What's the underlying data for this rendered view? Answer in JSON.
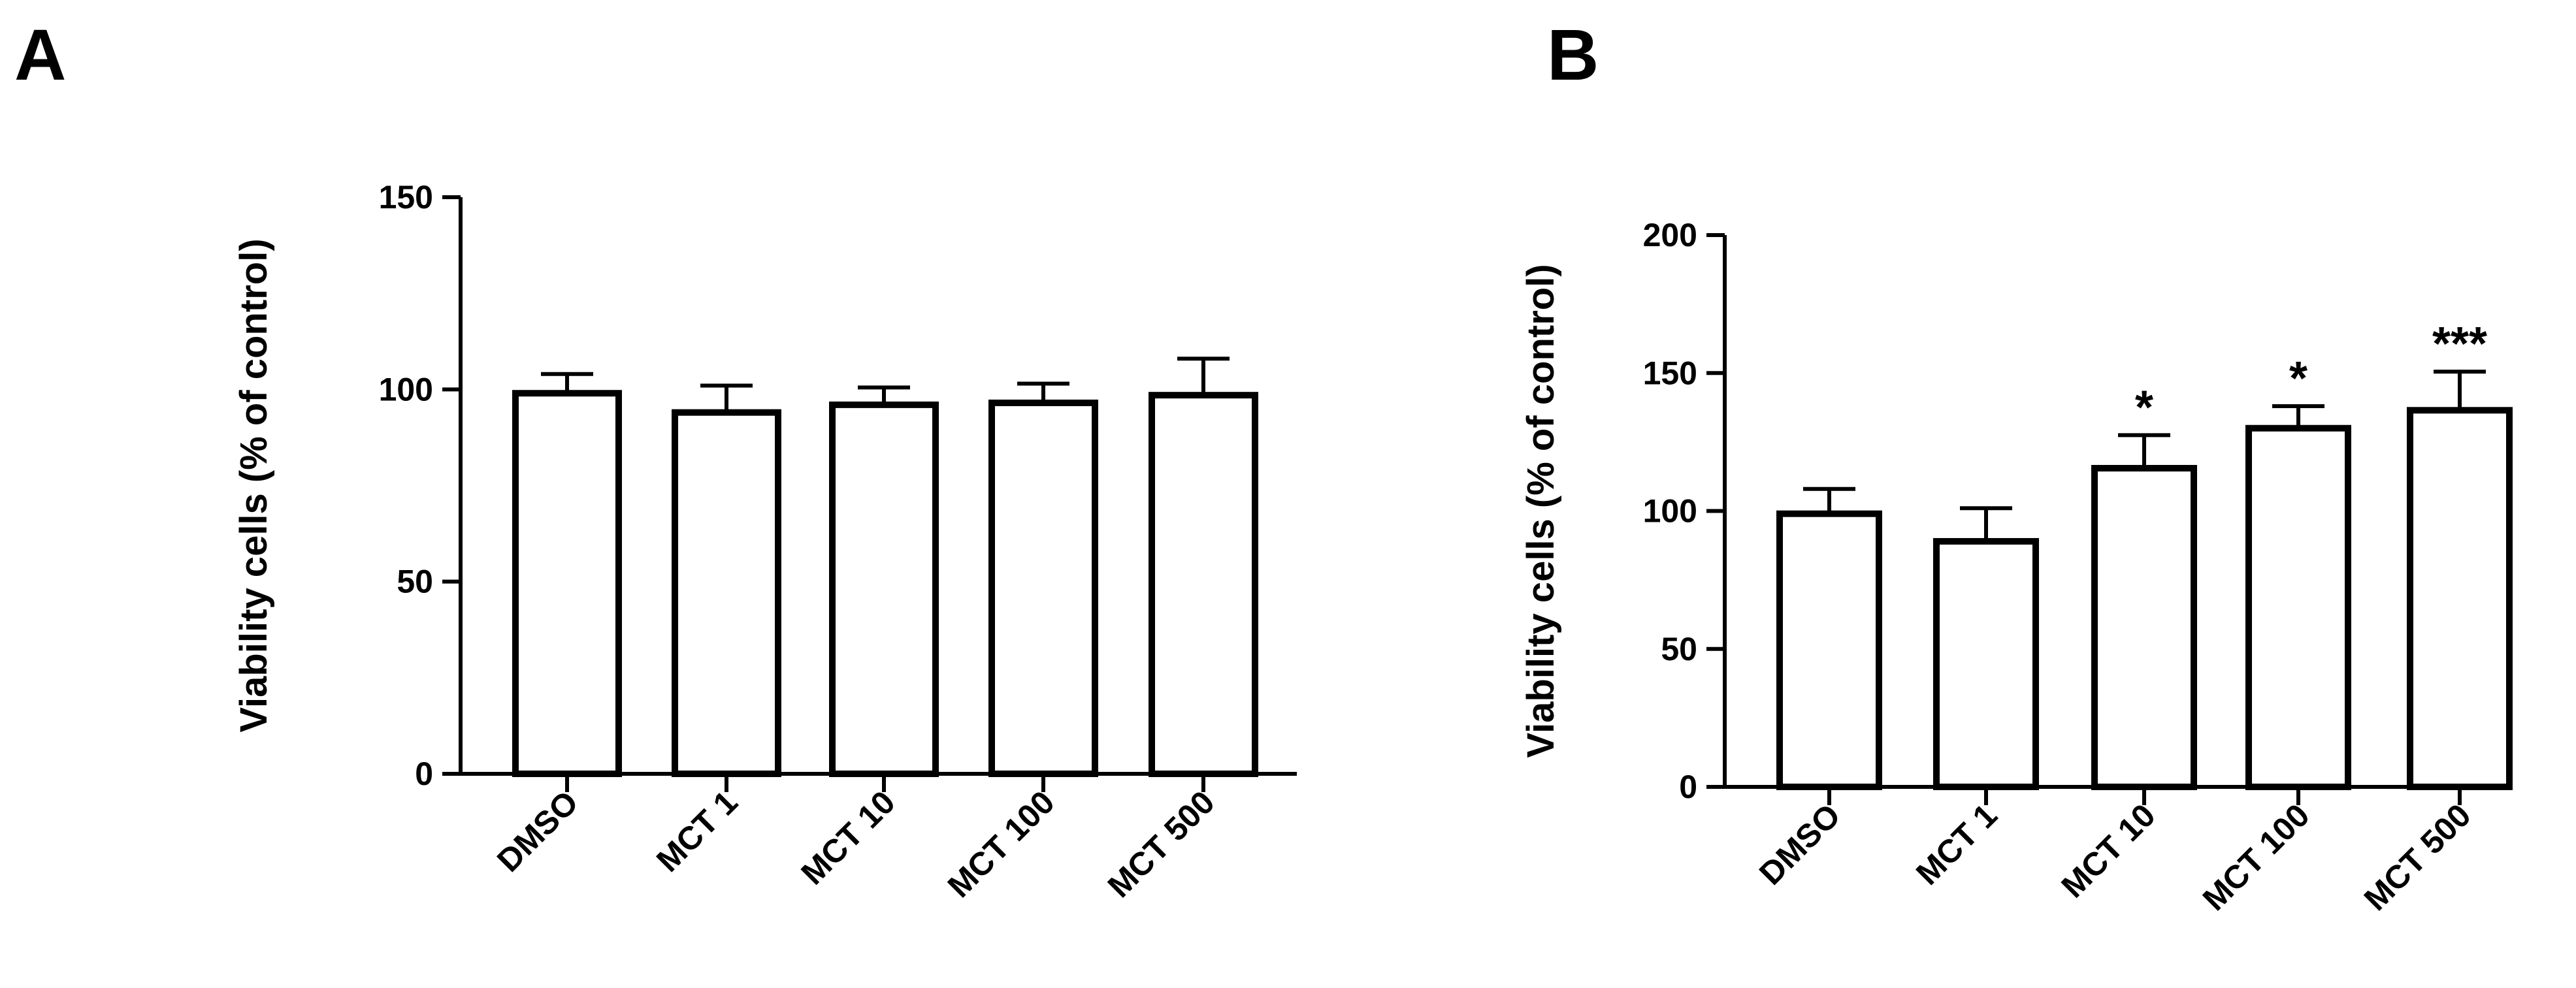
{
  "panels": [
    {
      "letter": "A"
    },
    {
      "letter": "B"
    }
  ],
  "chart_data": [
    {
      "type": "bar",
      "panel": "A",
      "categories": [
        "DMSO",
        "MCT 1",
        "MCT 10",
        "MCT 100",
        "MCT 500"
      ],
      "values": [
        99,
        94,
        96,
        96.5,
        98.5
      ],
      "error": [
        5,
        7,
        4.5,
        5,
        9.5
      ],
      "significance": [
        "",
        "",
        "",
        "",
        ""
      ],
      "ylabel": "Viability cells (% of control)",
      "ylim": [
        0,
        150
      ],
      "yticks": [
        0,
        50,
        100,
        150
      ]
    },
    {
      "type": "bar",
      "panel": "B",
      "categories": [
        "DMSO",
        "MCT 1",
        "MCT 10",
        "MCT 100",
        "MCT 500"
      ],
      "values": [
        99,
        89,
        115.5,
        130,
        136.5
      ],
      "error": [
        9,
        12,
        12,
        8,
        14
      ],
      "significance": [
        "",
        "",
        "*",
        "*",
        "***"
      ],
      "ylabel": "Viability cells (% of control)",
      "ylim": [
        0,
        200
      ],
      "yticks": [
        0,
        50,
        100,
        150,
        200
      ]
    }
  ]
}
